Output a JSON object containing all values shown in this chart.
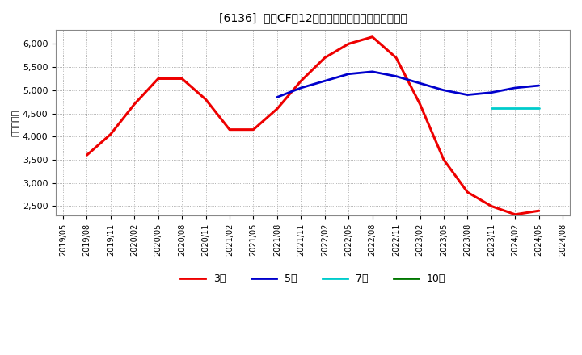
{
  "title": "[6136]  投賄CFの12か月移動合計の標準偏差の推移",
  "ylabel": "（百万円）",
  "background_color": "#ffffff",
  "plot_background": "#ffffff",
  "ylim": [
    2300,
    6300
  ],
  "yticks": [
    2500,
    3000,
    3500,
    4000,
    4500,
    5000,
    5500,
    6000
  ],
  "series": {
    "3year": {
      "color": "#ee0000",
      "label": "3年",
      "x": [
        "2019/08",
        "2019/11",
        "2020/02",
        "2020/05",
        "2020/08",
        "2020/11",
        "2021/02",
        "2021/05",
        "2021/08",
        "2021/11",
        "2022/02",
        "2022/05",
        "2022/08",
        "2022/11",
        "2023/02",
        "2023/05",
        "2023/08",
        "2023/11",
        "2024/02",
        "2024/05"
      ],
      "y": [
        3600,
        4050,
        4700,
        5250,
        5250,
        4800,
        4150,
        4150,
        4600,
        5200,
        5700,
        6000,
        6150,
        5700,
        4700,
        3500,
        2800,
        2500,
        2320,
        2400
      ]
    },
    "5year": {
      "color": "#0000cc",
      "label": "5年",
      "x": [
        "2021/08",
        "2021/11",
        "2022/02",
        "2022/05",
        "2022/08",
        "2022/11",
        "2023/02",
        "2023/05",
        "2023/08",
        "2023/11",
        "2024/02",
        "2024/05"
      ],
      "y": [
        4850,
        5050,
        5200,
        5350,
        5400,
        5300,
        5150,
        5000,
        4900,
        4950,
        5050,
        5100
      ]
    },
    "7year": {
      "color": "#00cccc",
      "label": "7年",
      "x": [
        "2023/11",
        "2024/05"
      ],
      "y": [
        4620,
        4620
      ]
    },
    "10year": {
      "color": "#007700",
      "label": "10年",
      "x": [],
      "y": []
    }
  },
  "xtick_labels": [
    "2019/05",
    "2019/08",
    "2019/11",
    "2020/02",
    "2020/05",
    "2020/08",
    "2020/11",
    "2021/02",
    "2021/05",
    "2021/08",
    "2021/11",
    "2022/02",
    "2022/05",
    "2022/08",
    "2022/11",
    "2023/02",
    "2023/05",
    "2023/08",
    "2023/11",
    "2024/02",
    "2024/05",
    "2024/08"
  ]
}
